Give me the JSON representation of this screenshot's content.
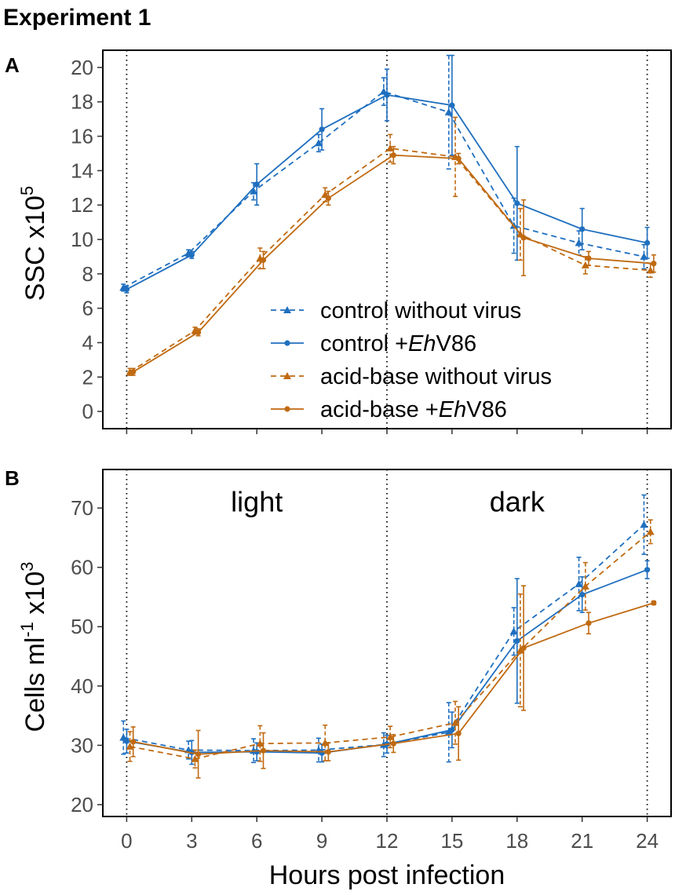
{
  "figure_title": "Experiment 1",
  "x_axis": {
    "label": "Hours post infection",
    "ticks": [
      0,
      3,
      6,
      9,
      12,
      15,
      18,
      21,
      24
    ],
    "tick_labels": [
      "0",
      "3",
      "6",
      "9",
      "12",
      "15",
      "18",
      "21",
      "24"
    ]
  },
  "legend": [
    {
      "label_pre": "control without virus",
      "label_ital": "",
      "label_post": "",
      "color": "#1f6fbf",
      "dash": true,
      "marker": "triangle"
    },
    {
      "label_pre": "control +",
      "label_ital": "Eh",
      "label_post": "V86",
      "color": "#1f6fbf",
      "dash": false,
      "marker": "circle"
    },
    {
      "label_pre": "acid-base without virus",
      "label_ital": "",
      "label_post": "",
      "color": "#c06a12",
      "dash": true,
      "marker": "triangle"
    },
    {
      "label_pre": "acid-base +",
      "label_ital": "Eh",
      "label_post": "V86",
      "color": "#c06a12",
      "dash": false,
      "marker": "circle"
    }
  ],
  "chart_data": [
    {
      "type": "line",
      "panel_label": "A",
      "title": "",
      "xlabel": "Hours post infection",
      "ylabel_main": "SSC x10",
      "ylabel_sup": "5",
      "xlim": [
        -1.1,
        25.1
      ],
      "ylim": [
        -1,
        21
      ],
      "yticks": [
        0,
        2,
        4,
        6,
        8,
        10,
        12,
        14,
        16,
        18,
        20
      ],
      "ytick_labels": [
        "0",
        "2",
        "4",
        "6",
        "8",
        "10",
        "12",
        "14",
        "16",
        "18",
        "20"
      ],
      "vlines": [
        0,
        12,
        24
      ],
      "series": [
        {
          "name": "control without virus",
          "color": "#1f6fbf",
          "dash": true,
          "marker": "triangle",
          "x": [
            -0.15,
            2.85,
            5.85,
            8.85,
            11.85,
            14.85,
            17.85,
            20.85,
            23.85
          ],
          "y": [
            7.2,
            9.2,
            12.8,
            15.6,
            18.6,
            17.4,
            10.8,
            9.8,
            9.0
          ],
          "err": [
            0.2,
            0.2,
            0.5,
            0.5,
            0.8,
            3.3,
            1.6,
            0.7,
            0.7
          ]
        },
        {
          "name": "control +EhV86",
          "color": "#1f6fbf",
          "dash": false,
          "marker": "circle",
          "x": [
            0,
            3,
            6,
            9,
            12,
            15,
            18,
            21,
            24
          ],
          "y": [
            7.1,
            9.1,
            13.2,
            16.4,
            18.4,
            17.8,
            12.1,
            10.6,
            9.8
          ],
          "err": [
            0.2,
            0.2,
            1.2,
            1.2,
            1.5,
            2.9,
            3.3,
            1.2,
            0.9
          ]
        },
        {
          "name": "acid-base without virus",
          "color": "#c06a12",
          "dash": true,
          "marker": "triangle",
          "x": [
            0.15,
            3.15,
            6.15,
            9.15,
            12.15,
            15.15,
            18.15,
            21.15,
            24.15
          ],
          "y": [
            2.3,
            4.7,
            8.9,
            12.6,
            15.3,
            14.8,
            10.3,
            8.5,
            8.2
          ],
          "err": [
            0.2,
            0.2,
            0.6,
            0.4,
            0.8,
            2.3,
            1.5,
            0.5,
            0.4
          ]
        },
        {
          "name": "acid-base +EhV86",
          "color": "#c06a12",
          "dash": false,
          "marker": "circle",
          "x": [
            0.3,
            3.3,
            6.3,
            9.3,
            12.3,
            15.3,
            18.3,
            21.3,
            24.3
          ],
          "y": [
            2.3,
            4.6,
            8.8,
            12.4,
            14.9,
            14.7,
            10.1,
            8.9,
            8.6
          ],
          "err": [
            0.2,
            0.2,
            0.5,
            0.4,
            0.5,
            0.3,
            2.2,
            0.4,
            0.5
          ]
        }
      ]
    },
    {
      "type": "line",
      "panel_label": "B",
      "title": "",
      "xlabel": "Hours post infection",
      "ylabel_main": "Cells ml",
      "ylabel_sup1": "-1",
      "ylabel_mid": " x10",
      "ylabel_sup2": "3",
      "xlim": [
        -1.1,
        25.1
      ],
      "ylim": [
        18,
        76.5
      ],
      "yticks": [
        20,
        30,
        40,
        50,
        60,
        70
      ],
      "ytick_labels": [
        "20",
        "30",
        "40",
        "50",
        "60",
        "70"
      ],
      "vlines": [
        0,
        12,
        24
      ],
      "annotations": [
        {
          "text": "light",
          "x": 6,
          "y": 71
        },
        {
          "text": "dark",
          "x": 18,
          "y": 71
        }
      ],
      "series": [
        {
          "name": "control without virus",
          "color": "#1f6fbf",
          "dash": true,
          "marker": "triangle",
          "x": [
            -0.15,
            2.85,
            5.85,
            8.85,
            11.85,
            14.85,
            17.85,
            20.85,
            23.85
          ],
          "y": [
            31.3,
            29.2,
            29.1,
            29.2,
            30.1,
            32.2,
            49.2,
            57.2,
            67.2
          ],
          "err": [
            2.8,
            1.5,
            2.0,
            2.0,
            2.0,
            5.0,
            4.0,
            4.5,
            5.0
          ]
        },
        {
          "name": "control +EhV86",
          "color": "#1f6fbf",
          "dash": false,
          "marker": "circle",
          "x": [
            0,
            3,
            6,
            9,
            12,
            15,
            18,
            21,
            24
          ],
          "y": [
            30.7,
            28.8,
            28.9,
            28.7,
            30.2,
            32.6,
            47.6,
            55.4,
            59.6
          ],
          "err": [
            2.0,
            2.0,
            1.5,
            1.5,
            1.5,
            3.0,
            10.5,
            3.0,
            1.5
          ]
        },
        {
          "name": "acid-base without virus",
          "color": "#c06a12",
          "dash": true,
          "marker": "triangle",
          "x": [
            0.15,
            3.15,
            6.15,
            9.15,
            12.15,
            15.15,
            18.15,
            21.15,
            24.15
          ],
          "y": [
            29.8,
            27.7,
            30.3,
            30.4,
            31.4,
            33.8,
            46.0,
            56.8,
            66.0
          ],
          "err": [
            2.5,
            1.5,
            3.0,
            3.0,
            1.8,
            3.6,
            9.5,
            4.0,
            2.0
          ]
        },
        {
          "name": "acid-base +EhV86",
          "color": "#c06a12",
          "dash": false,
          "marker": "circle",
          "x": [
            0.3,
            3.3,
            6.3,
            9.3,
            12.3,
            15.3,
            18.3,
            21.3,
            24.3
          ],
          "y": [
            30.6,
            28.5,
            29.1,
            28.9,
            30.3,
            32.0,
            46.4,
            50.6,
            54.0
          ],
          "err": [
            2.5,
            4.0,
            3.0,
            1.5,
            1.5,
            4.5,
            10.5,
            1.8,
            0.3
          ]
        }
      ]
    }
  ]
}
